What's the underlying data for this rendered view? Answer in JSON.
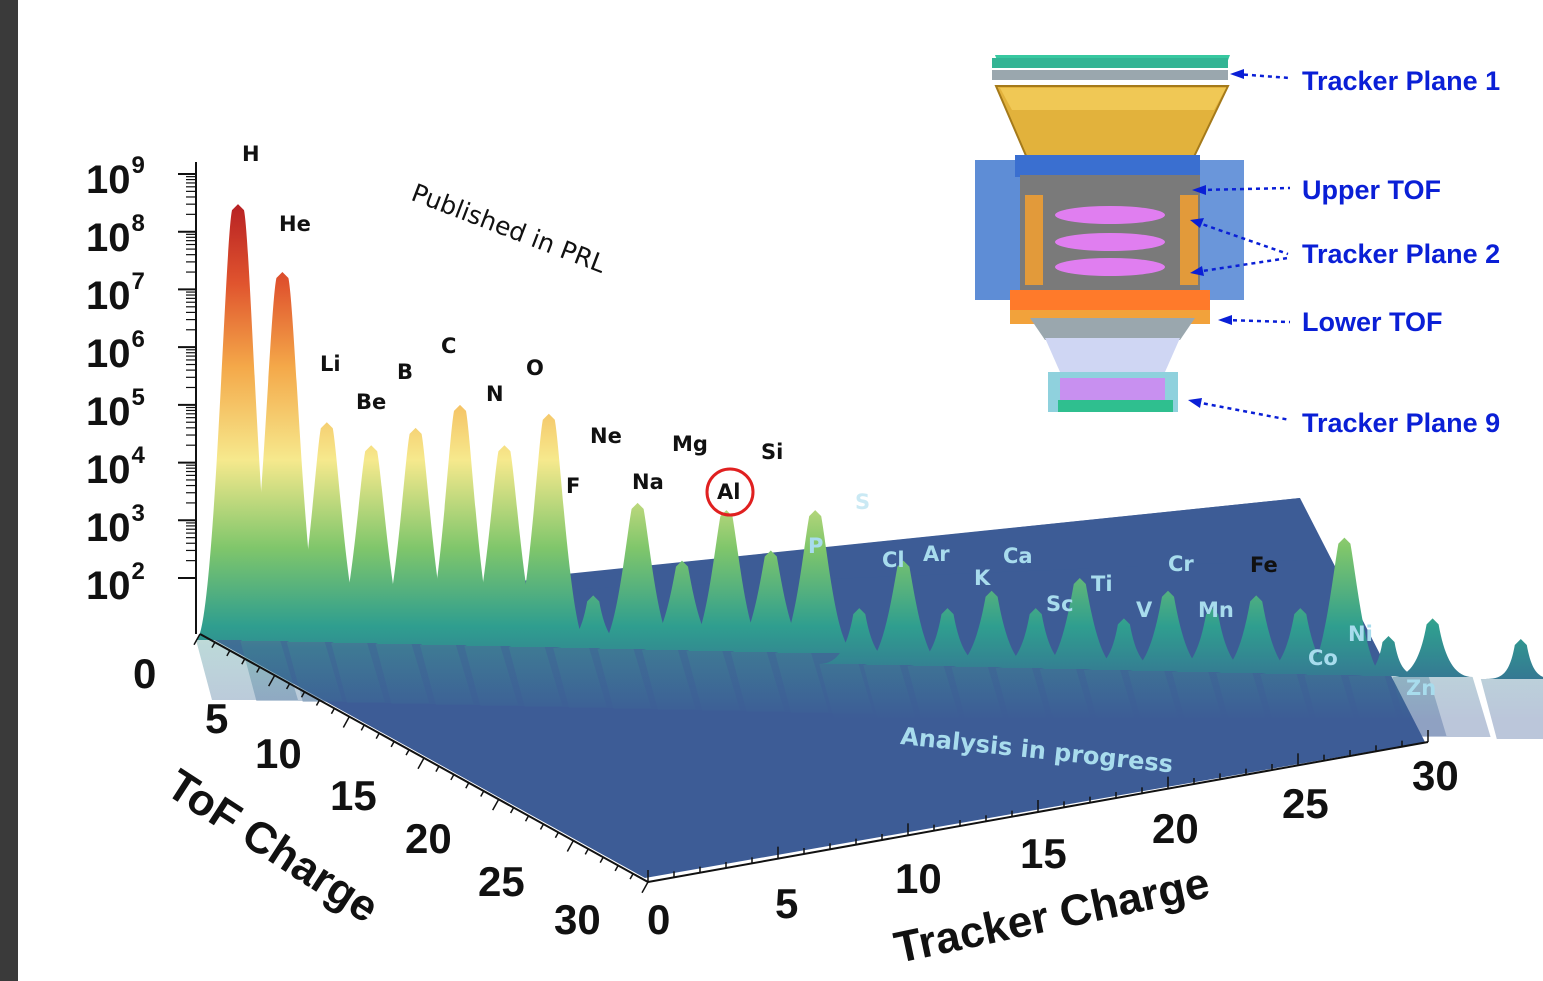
{
  "chart_data": {
    "type": "3d-surface",
    "xlabel": "ToF Charge",
    "ylabel": "Tracker Charge",
    "x_ticks": [
      "0",
      "5",
      "10",
      "15",
      "20",
      "25",
      "30"
    ],
    "y_ticks": [
      "0",
      "5",
      "10",
      "15",
      "20",
      "25",
      "30"
    ],
    "z_scale": "log",
    "z_ticks": [
      "10",
      "10",
      "10",
      "10",
      "10",
      "10",
      "10",
      "10"
    ],
    "z_tick_exponents": [
      "9",
      "8",
      "7",
      "6",
      "5",
      "4",
      "3",
      "2"
    ],
    "annotations": {
      "published": "Published in PRL",
      "progress": "Analysis in progress"
    },
    "peaks": [
      {
        "label": "H",
        "charge": 1,
        "height": 300000000,
        "status": "published"
      },
      {
        "label": "He",
        "charge": 2,
        "height": 20000000,
        "status": "published"
      },
      {
        "label": "Li",
        "charge": 3,
        "height": 50000,
        "status": "published"
      },
      {
        "label": "Be",
        "charge": 4,
        "height": 20000,
        "status": "published"
      },
      {
        "label": "B",
        "charge": 5,
        "height": 40000,
        "status": "published"
      },
      {
        "label": "C",
        "charge": 6,
        "height": 100000,
        "status": "published"
      },
      {
        "label": "N",
        "charge": 7,
        "height": 20000,
        "status": "published"
      },
      {
        "label": "O",
        "charge": 8,
        "height": 70000,
        "status": "published"
      },
      {
        "label": "F",
        "charge": 9,
        "height": 50,
        "status": "published"
      },
      {
        "label": "Ne",
        "charge": 10,
        "height": 2000,
        "status": "published"
      },
      {
        "label": "Na",
        "charge": 11,
        "height": 200,
        "status": "published"
      },
      {
        "label": "Mg",
        "charge": 12,
        "height": 1500,
        "status": "published"
      },
      {
        "label": "Al",
        "charge": 13,
        "height": 300,
        "status": "published",
        "circled": true
      },
      {
        "label": "Si",
        "charge": 14,
        "height": 1500,
        "status": "published"
      },
      {
        "label": "P",
        "charge": 15,
        "height": 30,
        "status": "progress"
      },
      {
        "label": "S",
        "charge": 16,
        "height": 200,
        "status": "progress"
      },
      {
        "label": "Cl",
        "charge": 17,
        "height": 30,
        "status": "progress"
      },
      {
        "label": "Ar",
        "charge": 18,
        "height": 60,
        "status": "progress"
      },
      {
        "label": "K",
        "charge": 19,
        "height": 30,
        "status": "progress"
      },
      {
        "label": "Ca",
        "charge": 20,
        "height": 100,
        "status": "progress"
      },
      {
        "label": "Sc",
        "charge": 21,
        "height": 20,
        "status": "progress"
      },
      {
        "label": "Ti",
        "charge": 22,
        "height": 60,
        "status": "progress"
      },
      {
        "label": "V",
        "charge": 23,
        "height": 30,
        "status": "progress"
      },
      {
        "label": "Cr",
        "charge": 24,
        "height": 50,
        "status": "progress"
      },
      {
        "label": "Mn",
        "charge": 25,
        "height": 30,
        "status": "progress"
      },
      {
        "label": "Fe",
        "charge": 26,
        "height": 500,
        "status": "published"
      },
      {
        "label": "Co",
        "charge": 27,
        "height": 5,
        "status": "progress"
      },
      {
        "label": "Ni",
        "charge": 28,
        "height": 20,
        "status": "progress"
      },
      {
        "label": "Zn",
        "charge": 30,
        "height": 2,
        "status": "progress"
      }
    ],
    "colormap": [
      "#3a5b96",
      "#2f9e8f",
      "#7fc66b",
      "#f6e98d",
      "#f4a849",
      "#e0542e",
      "#b51e23"
    ]
  },
  "detector_legend": {
    "tracker_plane_1": "Tracker Plane 1",
    "upper_tof": "Upper TOF",
    "tracker_plane_2": "Tracker Plane 2",
    "lower_tof": "Lower TOF",
    "tracker_plane_9": "Tracker Plane 9"
  },
  "colors": {
    "legend_text": "#0a1fd6",
    "known_label": "#111111",
    "progress_label": "#a8dced",
    "floor": "#3d5c96",
    "highlight_circle": "#e02020"
  }
}
